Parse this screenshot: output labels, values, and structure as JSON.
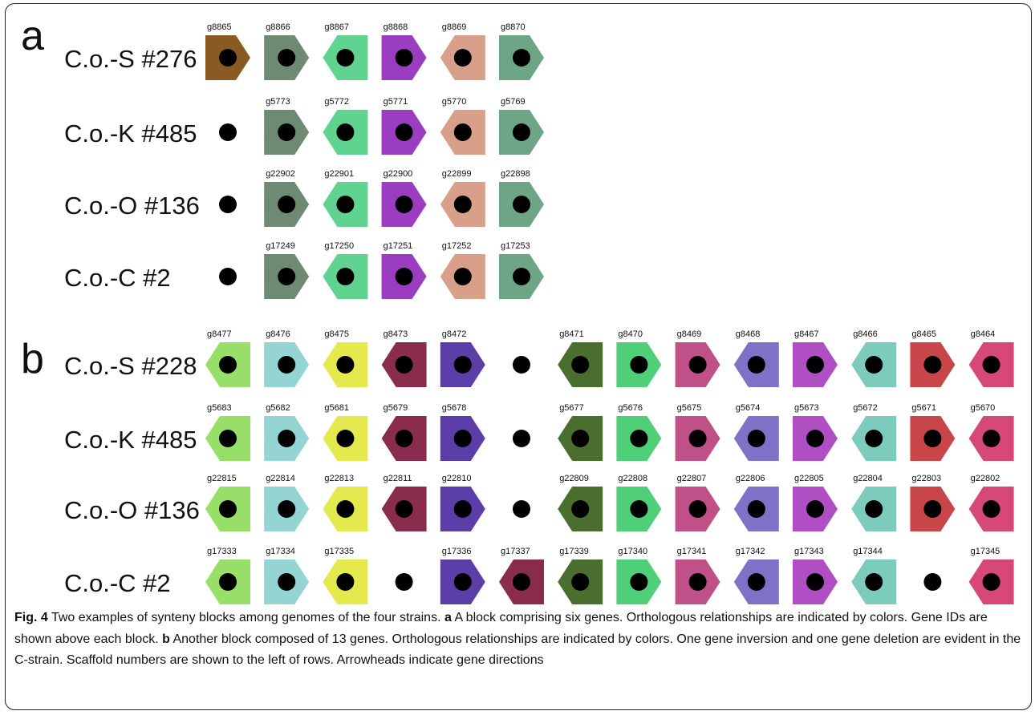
{
  "panels": [
    {
      "letter": "a",
      "rows": [
        {
          "label": "C.o.-S #276",
          "genes": [
            {
              "id": "g8865",
              "color": "#8a5a23",
              "dir": "right"
            },
            {
              "id": "g8866",
              "color": "#6e8a72",
              "dir": "right"
            },
            {
              "id": "g8867",
              "color": "#5fd38f",
              "dir": "left"
            },
            {
              "id": "g8868",
              "color": "#9b3dc0",
              "dir": "right"
            },
            {
              "id": "g8869",
              "color": "#d8a08a",
              "dir": "left"
            },
            {
              "id": "g8870",
              "color": "#6ea586",
              "dir": "right"
            }
          ]
        },
        {
          "label": "C.o.-K #485",
          "genes": [
            null,
            {
              "id": "g5773",
              "color": "#6e8a72",
              "dir": "right"
            },
            {
              "id": "g5772",
              "color": "#5fd38f",
              "dir": "left"
            },
            {
              "id": "g5771",
              "color": "#9b3dc0",
              "dir": "right"
            },
            {
              "id": "g5770",
              "color": "#d8a08a",
              "dir": "left"
            },
            {
              "id": "g5769",
              "color": "#6ea586",
              "dir": "right"
            }
          ]
        },
        {
          "label": "C.o.-O #136",
          "genes": [
            null,
            {
              "id": "g22902",
              "color": "#6e8a72",
              "dir": "right"
            },
            {
              "id": "g22901",
              "color": "#5fd38f",
              "dir": "left"
            },
            {
              "id": "g22900",
              "color": "#9b3dc0",
              "dir": "right"
            },
            {
              "id": "g22899",
              "color": "#d8a08a",
              "dir": "left"
            },
            {
              "id": "g22898",
              "color": "#6ea586",
              "dir": "right"
            }
          ]
        },
        {
          "label": "C.o.-C #2",
          "genes": [
            null,
            {
              "id": "g17249",
              "color": "#6e8a72",
              "dir": "right"
            },
            {
              "id": "g17250",
              "color": "#5fd38f",
              "dir": "left"
            },
            {
              "id": "g17251",
              "color": "#9b3dc0",
              "dir": "right"
            },
            {
              "id": "g17252",
              "color": "#d8a08a",
              "dir": "left"
            },
            {
              "id": "g17253",
              "color": "#6ea586",
              "dir": "right"
            }
          ]
        }
      ]
    },
    {
      "letter": "b",
      "rows": [
        {
          "label": "C.o.-S #228",
          "genes": [
            {
              "id": "g8477",
              "color": "#98df6a",
              "dir": "left"
            },
            {
              "id": "g8476",
              "color": "#94d5d4",
              "dir": "right"
            },
            {
              "id": "g8475",
              "color": "#e4ea4e",
              "dir": "left"
            },
            {
              "id": "g8473",
              "color": "#8a2c4e",
              "dir": "left"
            },
            {
              "id": "g8472",
              "color": "#5b3ea8",
              "dir": "right"
            },
            null,
            {
              "id": "g8471",
              "color": "#4a6e2e",
              "dir": "left"
            },
            {
              "id": "g8470",
              "color": "#4fcf78",
              "dir": "right"
            },
            {
              "id": "g8469",
              "color": "#c05088",
              "dir": "right"
            },
            {
              "id": "g8468",
              "color": "#7e72c8",
              "dir": "left"
            },
            {
              "id": "g8467",
              "color": "#b04fc4",
              "dir": "right"
            },
            {
              "id": "g8466",
              "color": "#7ccbbd",
              "dir": "left"
            },
            {
              "id": "g8465",
              "color": "#c8454a",
              "dir": "right"
            },
            {
              "id": "g8464",
              "color": "#d64878",
              "dir": "left"
            }
          ]
        },
        {
          "label": "C.o.-K #485",
          "genes": [
            {
              "id": "g5683",
              "color": "#98df6a",
              "dir": "left"
            },
            {
              "id": "g5682",
              "color": "#94d5d4",
              "dir": "right"
            },
            {
              "id": "g5681",
              "color": "#e4ea4e",
              "dir": "left"
            },
            {
              "id": "g5679",
              "color": "#8a2c4e",
              "dir": "left"
            },
            {
              "id": "g5678",
              "color": "#5b3ea8",
              "dir": "right"
            },
            null,
            {
              "id": "g5677",
              "color": "#4a6e2e",
              "dir": "left"
            },
            {
              "id": "g5676",
              "color": "#4fcf78",
              "dir": "right"
            },
            {
              "id": "g5675",
              "color": "#c05088",
              "dir": "right"
            },
            {
              "id": "g5674",
              "color": "#7e72c8",
              "dir": "left"
            },
            {
              "id": "g5673",
              "color": "#b04fc4",
              "dir": "right"
            },
            {
              "id": "g5672",
              "color": "#7ccbbd",
              "dir": "left"
            },
            {
              "id": "g5671",
              "color": "#c8454a",
              "dir": "right"
            },
            {
              "id": "g5670",
              "color": "#d64878",
              "dir": "left"
            }
          ]
        },
        {
          "label": "C.o.-O #136",
          "genes": [
            {
              "id": "g22815",
              "color": "#98df6a",
              "dir": "left"
            },
            {
              "id": "g22814",
              "color": "#94d5d4",
              "dir": "right"
            },
            {
              "id": "g22813",
              "color": "#e4ea4e",
              "dir": "left"
            },
            {
              "id": "g22811",
              "color": "#8a2c4e",
              "dir": "left"
            },
            {
              "id": "g22810",
              "color": "#5b3ea8",
              "dir": "right"
            },
            null,
            {
              "id": "g22809",
              "color": "#4a6e2e",
              "dir": "left"
            },
            {
              "id": "g22808",
              "color": "#4fcf78",
              "dir": "right"
            },
            {
              "id": "g22807",
              "color": "#c05088",
              "dir": "right"
            },
            {
              "id": "g22806",
              "color": "#7e72c8",
              "dir": "left"
            },
            {
              "id": "g22805",
              "color": "#b04fc4",
              "dir": "right"
            },
            {
              "id": "g22804",
              "color": "#7ccbbd",
              "dir": "left"
            },
            {
              "id": "g22803",
              "color": "#c8454a",
              "dir": "right"
            },
            {
              "id": "g22802",
              "color": "#d64878",
              "dir": "left"
            }
          ]
        },
        {
          "label": "C.o.-C #2",
          "genes": [
            {
              "id": "g17333",
              "color": "#98df6a",
              "dir": "left"
            },
            {
              "id": "g17334",
              "color": "#94d5d4",
              "dir": "right"
            },
            {
              "id": "g17335",
              "color": "#e4ea4e",
              "dir": "left"
            },
            null,
            {
              "id": "g17336",
              "color": "#5b3ea8",
              "dir": "right"
            },
            {
              "id": "g17337",
              "color": "#8a2c4e",
              "dir": "left"
            },
            {
              "id": "g17339",
              "color": "#4a6e2e",
              "dir": "left"
            },
            {
              "id": "g17340",
              "color": "#4fcf78",
              "dir": "right"
            },
            {
              "id": "g17341",
              "color": "#c05088",
              "dir": "right"
            },
            {
              "id": "g17342",
              "color": "#7e72c8",
              "dir": "left"
            },
            {
              "id": "g17343",
              "color": "#b04fc4",
              "dir": "right"
            },
            {
              "id": "g17344",
              "color": "#7ccbbd",
              "dir": "left"
            },
            null,
            {
              "id": "g17345",
              "color": "#d64878",
              "dir": "left"
            }
          ]
        }
      ]
    }
  ],
  "caption": {
    "fig_label": "Fig. 4",
    "part1": " Two examples of synteny blocks among genomes of the four strains. ",
    "a_label": "a",
    "part2": " A block comprising six genes. Orthologous relationships are indicated by colors. Gene IDs are shown above each block. ",
    "b_label": "b",
    "part3": " Another block composed of 13 genes. Orthologous relationships are indicated by colors. One gene inversion and one gene deletion are evident in the C-strain. Scaffold numbers are shown to the left of rows. Arrowheads indicate gene directions"
  }
}
